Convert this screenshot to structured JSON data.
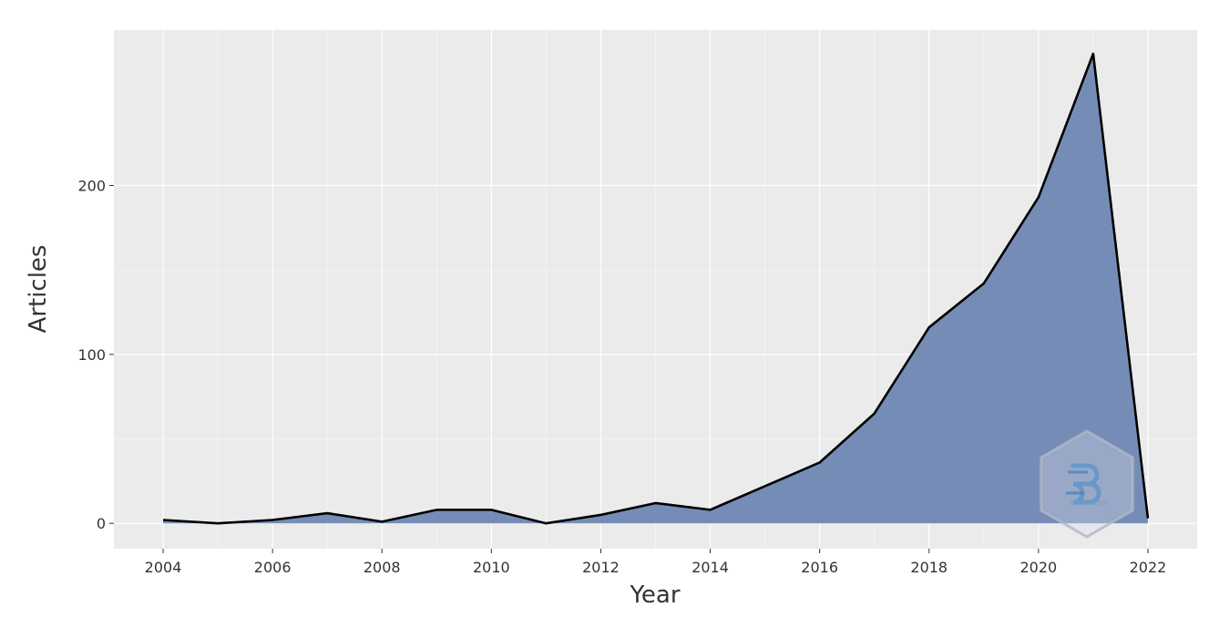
{
  "chart_data": {
    "type": "area",
    "xlabel": "Year",
    "ylabel": "Articles",
    "xlim": [
      2003.1,
      2022.9
    ],
    "ylim": [
      -15,
      292
    ],
    "xticks": [
      2004,
      2006,
      2008,
      2010,
      2012,
      2014,
      2016,
      2018,
      2020,
      2022
    ],
    "yticks": [
      0,
      100,
      200
    ],
    "grid": true,
    "legend": "none",
    "x": [
      2004,
      2005,
      2006,
      2007,
      2008,
      2009,
      2010,
      2011,
      2012,
      2013,
      2014,
      2015,
      2016,
      2017,
      2018,
      2019,
      2020,
      2021,
      2022
    ],
    "series": [
      {
        "values": [
          2,
          0,
          2,
          6,
          1,
          8,
          8,
          0,
          5,
          12,
          8,
          22,
          36,
          65,
          116,
          142,
          193,
          278,
          3
        ]
      }
    ]
  },
  "watermark": {
    "text": "bibliometrix"
  },
  "colors": {
    "panel_bg": "#ebebeb",
    "grid": "#ffffff",
    "area_fill": "#6f88b3",
    "line": "#000000"
  }
}
